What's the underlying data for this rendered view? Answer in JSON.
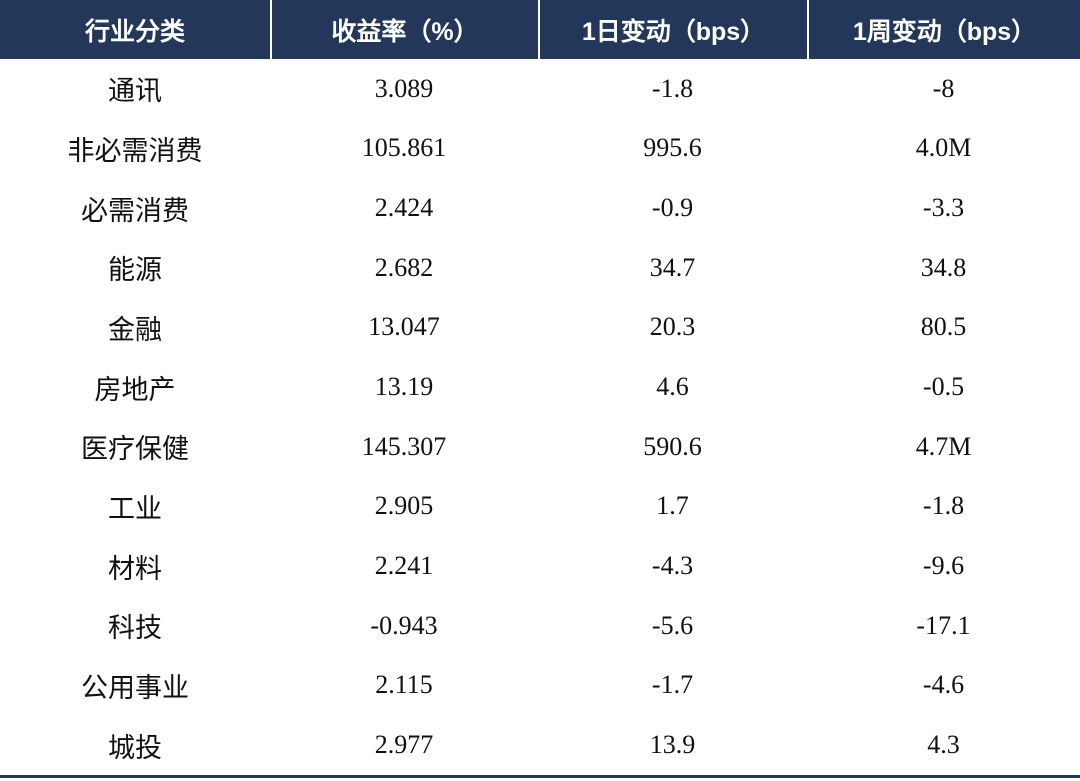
{
  "table": {
    "headers": [
      "行业分类",
      "收益率（%）",
      "1日变动（bps）",
      "1周变动（bps）"
    ],
    "rows": [
      [
        "通讯",
        "3.089",
        "-1.8",
        "-8"
      ],
      [
        "非必需消费",
        "105.861",
        "995.6",
        "4.0M"
      ],
      [
        "必需消费",
        "2.424",
        "-0.9",
        "-3.3"
      ],
      [
        "能源",
        "2.682",
        "34.7",
        "34.8"
      ],
      [
        "金融",
        "13.047",
        "20.3",
        "80.5"
      ],
      [
        "房地产",
        "13.19",
        "4.6",
        "-0.5"
      ],
      [
        "医疗保健",
        "145.307",
        "590.6",
        "4.7M"
      ],
      [
        "工业",
        "2.905",
        "1.7",
        "-1.8"
      ],
      [
        "材料",
        "2.241",
        "-4.3",
        "-9.6"
      ],
      [
        "科技",
        "-0.943",
        "-5.6",
        "-17.1"
      ],
      [
        "公用事业",
        "2.115",
        "-1.7",
        "-4.6"
      ],
      [
        "城投",
        "2.977",
        "13.9",
        "4.3"
      ]
    ]
  },
  "colors": {
    "header_bg": "#22375a",
    "header_text": "#ffffff",
    "body_text": "#111111"
  }
}
